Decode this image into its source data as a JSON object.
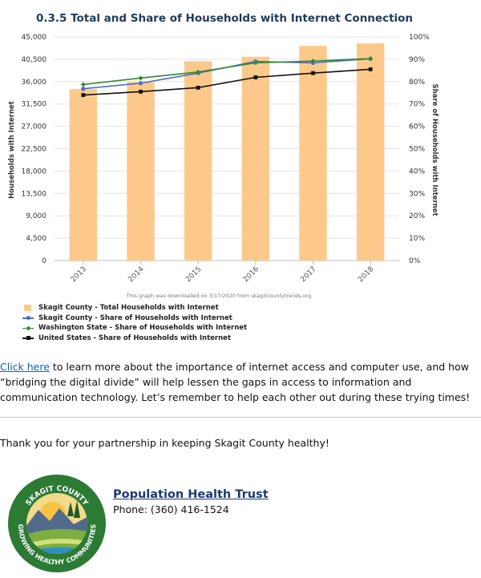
{
  "chart_data": {
    "type": "bar+line",
    "title": "0.3.5 Total and Share of Households with Internet Connection",
    "categories": [
      "2013",
      "2014",
      "2015",
      "2016",
      "2017",
      "2018"
    ],
    "y_left": {
      "label": "Households with Internet",
      "range": [
        0,
        45000
      ],
      "ticks": [
        "0",
        "4,500",
        "9,000",
        "13,500",
        "18,000",
        "22,500",
        "27,000",
        "31,500",
        "36,000",
        "40,500",
        "45,000"
      ]
    },
    "y_right": {
      "label": "Share of Households with Internet",
      "range": [
        0,
        100
      ],
      "ticks": [
        "0%",
        "10%",
        "20%",
        "30%",
        "40%",
        "50%",
        "60%",
        "70%",
        "80%",
        "90%",
        "100%"
      ]
    },
    "bars": {
      "name": "Skagit County - Total Households with Internet",
      "color": "#fdc98a",
      "values": [
        34500,
        35900,
        40100,
        41000,
        43200,
        43700
      ]
    },
    "series": [
      {
        "name": "Skagit County - Share of Households with Internet",
        "color": "#4a6bc0",
        "marker": "circle",
        "values": [
          76.8,
          79.3,
          83.8,
          89.0,
          88.4,
          90.2
        ]
      },
      {
        "name": "Washington State - Share of Households with Internet",
        "color": "#2e8b2e",
        "marker": "diamond",
        "values": [
          78.7,
          81.6,
          84.3,
          88.4,
          89.2,
          90.3
        ]
      },
      {
        "name": "United States - Share of Households with Internet",
        "color": "#111111",
        "marker": "square",
        "values": [
          74.0,
          75.5,
          77.3,
          81.9,
          83.8,
          85.5
        ]
      }
    ],
    "credit": "This graph was downloaded on 3/17/2020 from skagitcountytrends.org",
    "grid": "horizontal",
    "legend_placement": "bottom-left"
  },
  "body": {
    "link_text": "Click here",
    "paragraph_rest": " to learn more about the importance of internet access and computer use, and how “bridging the digital divide” will help lessen the gaps in access to information and communication technology. Let’s remember to help each other out during these trying times!",
    "thanks": "Thank you for your partnership in keeping Skagit County healthy!"
  },
  "logo": {
    "top_text": "SKAGIT COUNTY",
    "bottom_text": "GROWING HEALTHY COMMUNITIES"
  },
  "contact": {
    "org_name": "Population Health Trust",
    "phone": "Phone: (360) 416-1524"
  }
}
